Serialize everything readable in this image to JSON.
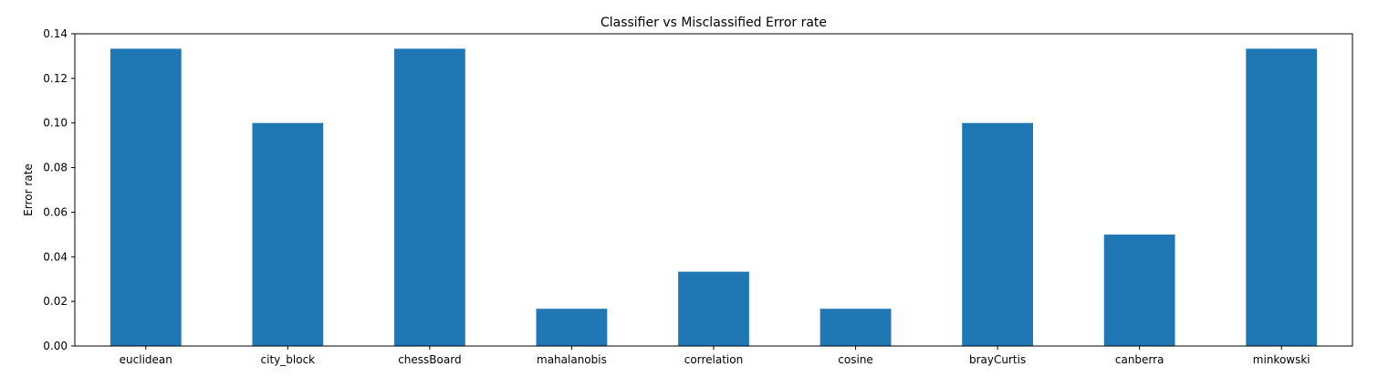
{
  "chart_data": {
    "type": "bar",
    "title": "Classifier vs Misclassified Error rate",
    "xlabel": "",
    "ylabel": "Error rate",
    "categories": [
      "euclidean",
      "city_block",
      "chessBoard",
      "mahalanobis",
      "correlation",
      "cosine",
      "brayCurtis",
      "canberra",
      "minkowski"
    ],
    "values": [
      0.1333,
      0.1,
      0.1333,
      0.0167,
      0.0333,
      0.0167,
      0.1,
      0.05,
      0.1333
    ],
    "ylim": [
      0,
      0.14
    ],
    "yticks": [
      "0.00",
      "0.02",
      "0.04",
      "0.06",
      "0.08",
      "0.10",
      "0.12",
      "0.14"
    ],
    "grid": false,
    "legend": "none",
    "bar_color": "#1f77b4"
  }
}
